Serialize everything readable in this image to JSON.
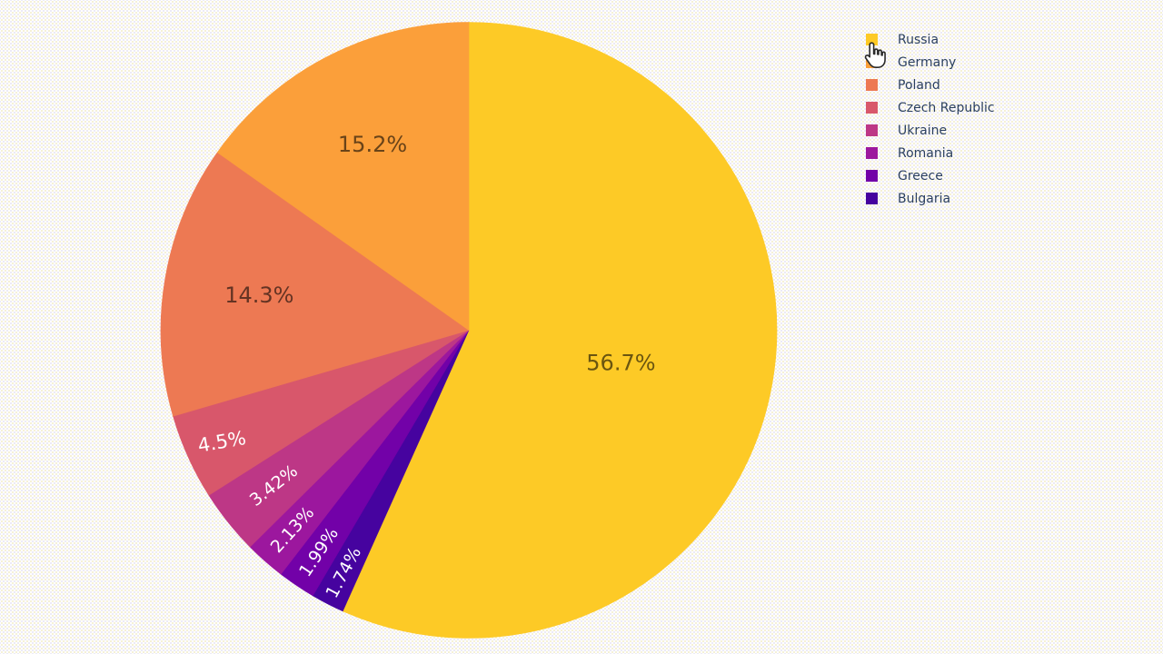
{
  "chart_data": {
    "type": "pie",
    "title": "",
    "labels": [
      "Russia",
      "Germany",
      "Poland",
      "Czech Republic",
      "Ukraine",
      "Romania",
      "Greece",
      "Bulgaria"
    ],
    "values_percent": [
      56.7,
      15.2,
      14.3,
      4.5,
      3.42,
      2.13,
      1.99,
      1.74
    ],
    "slice_text": [
      "56.7%",
      "15.2%",
      "14.3%",
      "4.5%",
      "3.42%",
      "2.13%",
      "1.99%",
      "1.74%"
    ],
    "colors": [
      "#fdca26",
      "#fb9f3a",
      "#ed7953",
      "#d8576b",
      "#bd3786",
      "#9c179e",
      "#7201a8",
      "#46039f"
    ],
    "colorscale_name": "plasma",
    "layout_hints": {
      "legend_position": "top-right",
      "slice_order": "largest slice clockwise from 12 o'clock, remaining slices counterclockwise",
      "labels_inside": true,
      "small_slice_label_color": "#ffffff",
      "large_slice_label_color": "darkened slice color",
      "grid": false
    }
  },
  "cursor": {
    "type": "pointing-hand",
    "over": "legend-item-russia"
  }
}
